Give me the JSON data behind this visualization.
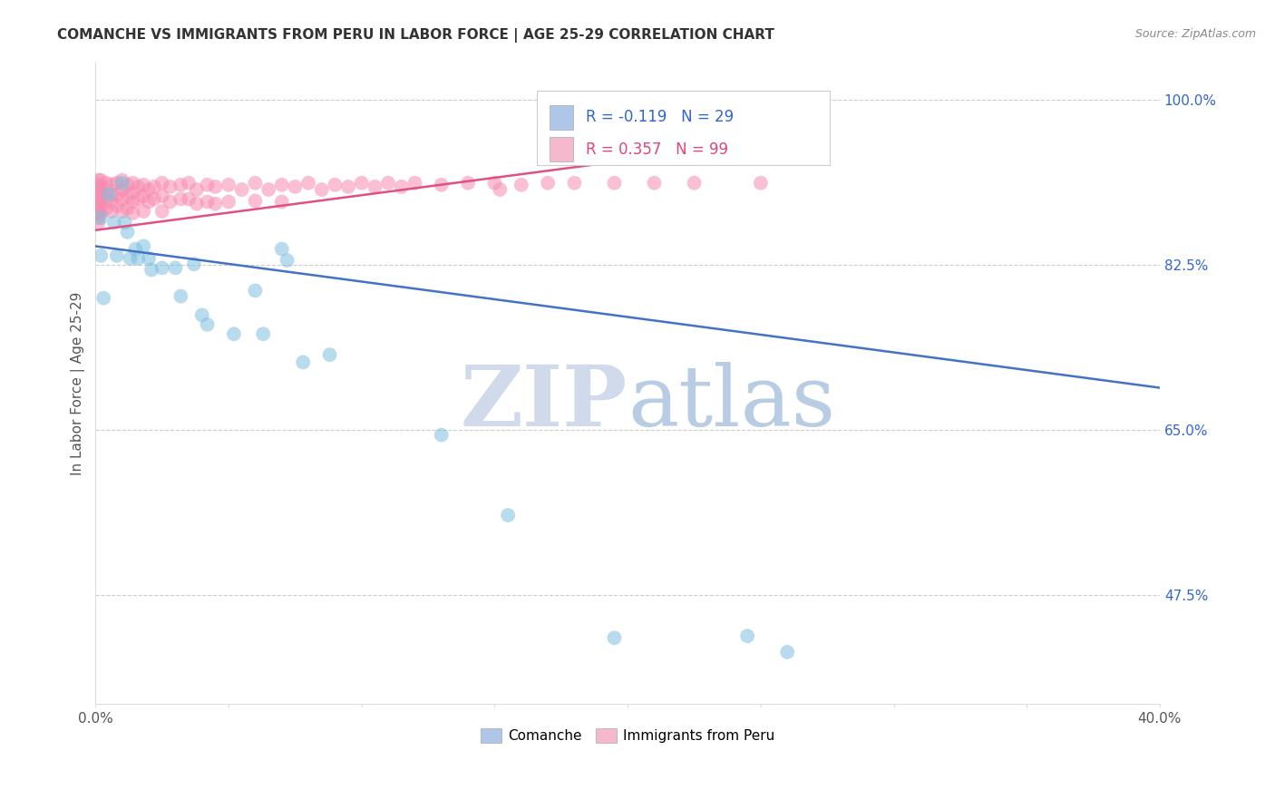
{
  "title": "COMANCHE VS IMMIGRANTS FROM PERU IN LABOR FORCE | AGE 25-29 CORRELATION CHART",
  "source": "Source: ZipAtlas.com",
  "ylabel": "In Labor Force | Age 25-29",
  "xlim": [
    0.0,
    0.4
  ],
  "ylim": [
    0.36,
    1.04
  ],
  "grid_yticks": [
    0.475,
    0.65,
    0.825,
    1.0
  ],
  "blue_color": "#7fbfdf",
  "pink_color": "#f78cb0",
  "blue_line_color": "#4472c4",
  "pink_line_color": "#e05080",
  "legend_blue_fill": "#aec6e8",
  "legend_pink_fill": "#f5b8cc",
  "R_blue": -0.119,
  "N_blue": 29,
  "R_pink": 0.357,
  "N_pink": 99,
  "blue_scatter_x": [
    0.002,
    0.002,
    0.003,
    0.005,
    0.007,
    0.008,
    0.01,
    0.011,
    0.012,
    0.013,
    0.015,
    0.016,
    0.018,
    0.02,
    0.021,
    0.025,
    0.03,
    0.032,
    0.037,
    0.04,
    0.042,
    0.052,
    0.06,
    0.063,
    0.07,
    0.072,
    0.078,
    0.088,
    0.13,
    0.155,
    0.195,
    0.245,
    0.26
  ],
  "blue_scatter_y": [
    0.875,
    0.835,
    0.79,
    0.9,
    0.87,
    0.835,
    0.912,
    0.87,
    0.86,
    0.832,
    0.842,
    0.832,
    0.845,
    0.832,
    0.82,
    0.822,
    0.822,
    0.792,
    0.826,
    0.772,
    0.762,
    0.752,
    0.798,
    0.752,
    0.842,
    0.83,
    0.722,
    0.73,
    0.645,
    0.56,
    0.43,
    0.432,
    0.415
  ],
  "pink_scatter_x": [
    0.001,
    0.001,
    0.001,
    0.001,
    0.001,
    0.001,
    0.001,
    0.001,
    0.001,
    0.001,
    0.002,
    0.002,
    0.002,
    0.002,
    0.002,
    0.002,
    0.004,
    0.004,
    0.004,
    0.004,
    0.006,
    0.006,
    0.006,
    0.006,
    0.008,
    0.008,
    0.008,
    0.01,
    0.01,
    0.01,
    0.01,
    0.012,
    0.012,
    0.012,
    0.014,
    0.014,
    0.014,
    0.014,
    0.016,
    0.016,
    0.018,
    0.018,
    0.018,
    0.02,
    0.02,
    0.022,
    0.022,
    0.025,
    0.025,
    0.025,
    0.028,
    0.028,
    0.032,
    0.032,
    0.035,
    0.035,
    0.038,
    0.038,
    0.042,
    0.042,
    0.045,
    0.045,
    0.05,
    0.05,
    0.055,
    0.06,
    0.06,
    0.065,
    0.07,
    0.07,
    0.075,
    0.08,
    0.085,
    0.09,
    0.095,
    0.1,
    0.105,
    0.11,
    0.115,
    0.12,
    0.13,
    0.14,
    0.15,
    0.152,
    0.16,
    0.17,
    0.18,
    0.195,
    0.21,
    0.225,
    0.25,
    0.27
  ],
  "pink_scatter_y": [
    0.915,
    0.91,
    0.905,
    0.9,
    0.895,
    0.89,
    0.885,
    0.88,
    0.875,
    0.87,
    0.915,
    0.908,
    0.9,
    0.895,
    0.888,
    0.88,
    0.912,
    0.905,
    0.895,
    0.885,
    0.91,
    0.9,
    0.892,
    0.882,
    0.912,
    0.9,
    0.888,
    0.915,
    0.905,
    0.895,
    0.882,
    0.91,
    0.898,
    0.885,
    0.912,
    0.902,
    0.892,
    0.88,
    0.908,
    0.895,
    0.91,
    0.898,
    0.882,
    0.905,
    0.892,
    0.908,
    0.895,
    0.912,
    0.898,
    0.882,
    0.908,
    0.892,
    0.91,
    0.895,
    0.912,
    0.895,
    0.905,
    0.89,
    0.91,
    0.892,
    0.908,
    0.89,
    0.91,
    0.892,
    0.905,
    0.912,
    0.893,
    0.905,
    0.91,
    0.892,
    0.908,
    0.912,
    0.905,
    0.91,
    0.908,
    0.912,
    0.908,
    0.912,
    0.908,
    0.912,
    0.91,
    0.912,
    0.912,
    0.905,
    0.91,
    0.912,
    0.912,
    0.912,
    0.912,
    0.912,
    0.912,
    0.945
  ],
  "blue_trend_x": [
    0.0,
    0.4
  ],
  "blue_trend_y": [
    0.845,
    0.695
  ],
  "pink_trend_x": [
    0.0,
    0.27
  ],
  "pink_trend_y": [
    0.862,
    0.962
  ],
  "watermark_zip": "ZIP",
  "watermark_atlas": "atlas",
  "background_color": "#ffffff"
}
